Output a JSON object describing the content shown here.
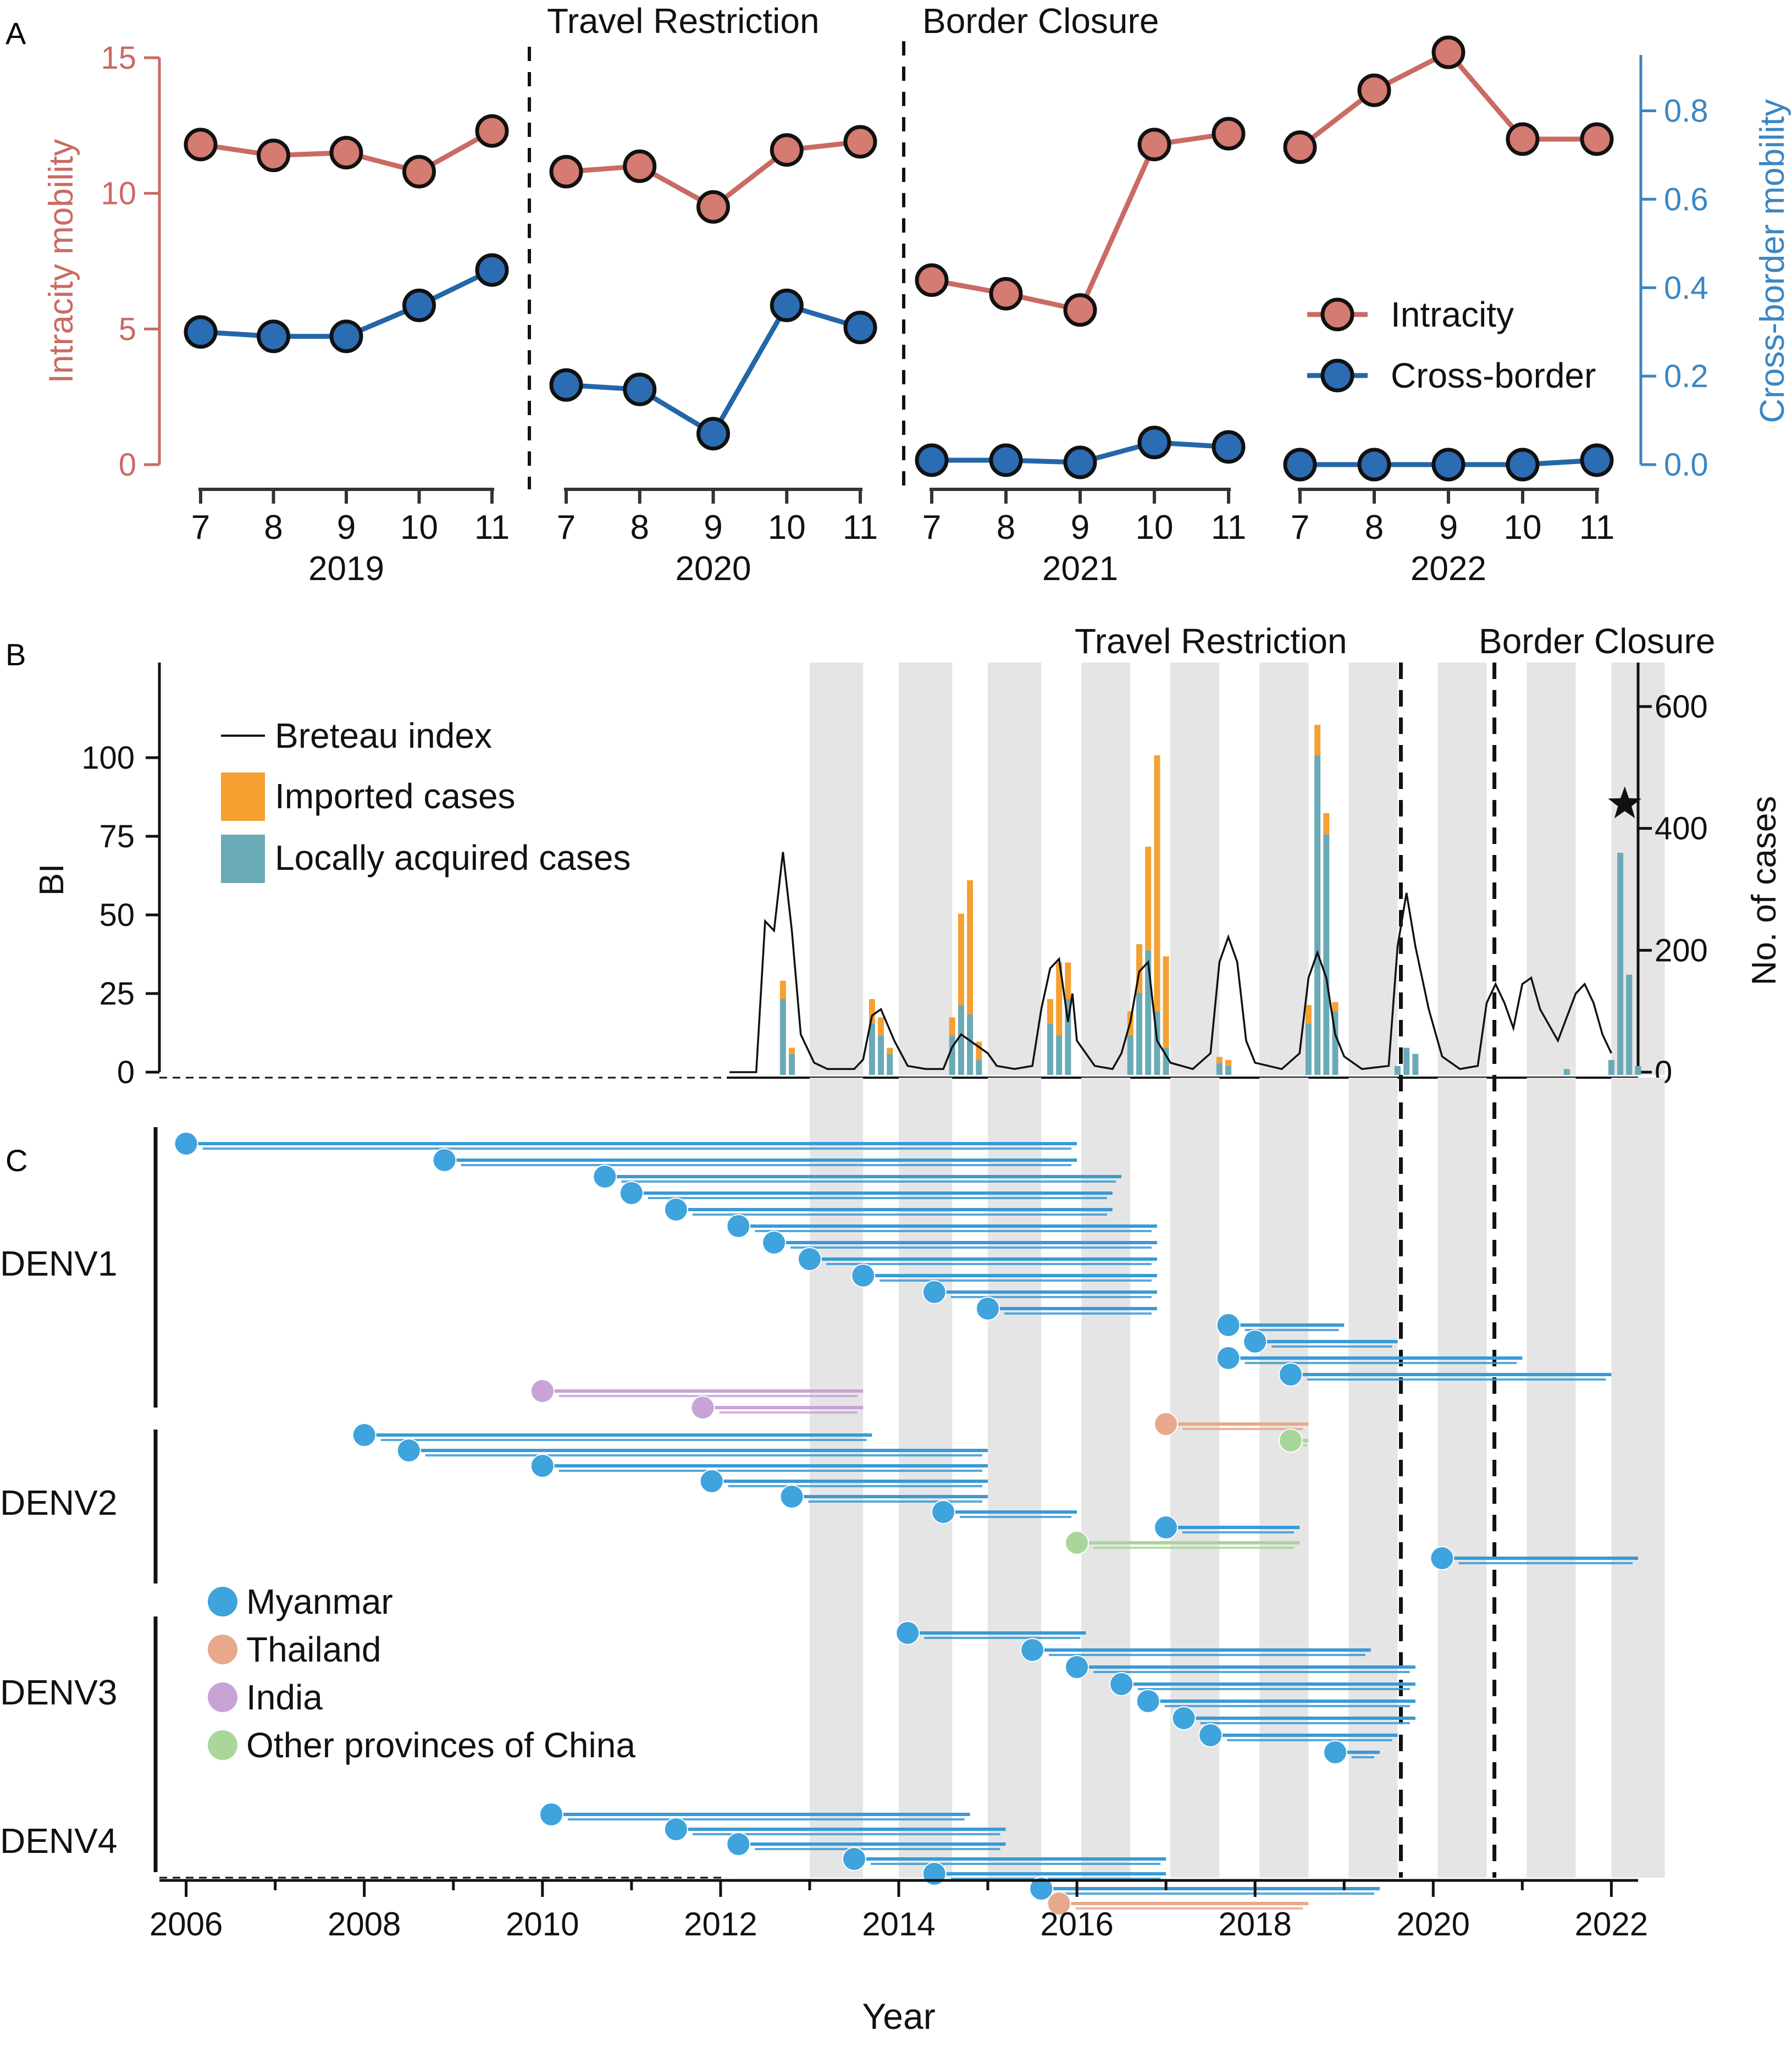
{
  "colors": {
    "intracity": "#c96b64",
    "intracity_fill": "#d47b72",
    "crossborder": "#2466a8",
    "crossborder_fill": "#2b6cb3",
    "crossborder_axis": "#3b86c2",
    "imported": "#f5a030",
    "local": "#6aaab6",
    "shade": "#e5e5e5",
    "myanmar": "#3fa3dd",
    "myanmar_branch": "#3a9ad6",
    "thailand": "#e8a88c",
    "india": "#c8a3d6",
    "china_other": "#a9d69a",
    "black": "#111111"
  },
  "panel_labels": {
    "a": "A",
    "b": "B",
    "c": "C"
  },
  "chart_data": [
    {
      "type": "line",
      "panel": "A",
      "ylabel_left": "Intracity mobility",
      "ylabel_right": "Cross-border mobility",
      "ylim_left": [
        0,
        15
      ],
      "ylim_right": [
        0,
        0.92
      ],
      "yticks_left": [
        "0",
        "5",
        "10",
        "15"
      ],
      "yticks_right": [
        "0.0",
        "0.2",
        "0.4",
        "0.6",
        "0.8"
      ],
      "annotations": [
        "Travel Restriction",
        "Border Closure"
      ],
      "legend": {
        "placement": "right",
        "entries": [
          "Intracity",
          "Cross-border"
        ]
      },
      "x_ticks": [
        "7",
        "8",
        "9",
        "10",
        "11"
      ],
      "groups": [
        {
          "year": "2019",
          "intracity": [
            11.8,
            11.4,
            11.5,
            10.8,
            12.3
          ],
          "crossborder": [
            0.3,
            0.29,
            0.29,
            0.36,
            0.44
          ]
        },
        {
          "year": "2020",
          "intracity": [
            10.8,
            11.0,
            9.5,
            11.6,
            11.9
          ],
          "crossborder": [
            0.18,
            0.17,
            0.07,
            0.36,
            0.31
          ]
        },
        {
          "year": "2021",
          "intracity": [
            6.8,
            6.3,
            5.7,
            11.8,
            12.2
          ],
          "crossborder": [
            0.01,
            0.01,
            0.005,
            0.05,
            0.04
          ]
        },
        {
          "year": "2022",
          "intracity": [
            11.7,
            13.8,
            15.2,
            12.0,
            12.0
          ],
          "crossborder": [
            0.0,
            0.0,
            0.0,
            0.0,
            0.01
          ]
        }
      ]
    },
    {
      "type": "bar",
      "panel": "B",
      "ylabel_left": "BI",
      "ylabel_right": "No. of cases",
      "ylim_left": [
        0,
        125
      ],
      "ylim_right": [
        0,
        640
      ],
      "yticks_left": [
        "0",
        "25",
        "50",
        "75",
        "100"
      ],
      "yticks_right": [
        "0",
        "200",
        "400",
        "600"
      ],
      "annotations": [
        "Travel Restriction",
        "Border Closure"
      ],
      "legend": {
        "placement": "top-left",
        "entries": [
          "Breteau index",
          "Imported cases",
          "Locally acquired cases"
        ]
      },
      "season_shading": [
        [
          2013.0,
          2013.6
        ],
        [
          2014.0,
          2014.6
        ],
        [
          2015.0,
          2015.6
        ],
        [
          2016.05,
          2016.6
        ],
        [
          2017.05,
          2017.6
        ],
        [
          2018.05,
          2018.6
        ],
        [
          2019.05,
          2019.6
        ],
        [
          2020.05,
          2020.6
        ],
        [
          2021.05,
          2021.6
        ],
        [
          2022.0,
          2022.6
        ]
      ],
      "series": [
        {
          "name": "Breteau index",
          "points": [
            [
              2012.1,
              0
            ],
            [
              2012.4,
              0
            ],
            [
              2012.5,
              48
            ],
            [
              2012.6,
              45
            ],
            [
              2012.7,
              70
            ],
            [
              2012.8,
              45
            ],
            [
              2012.9,
              12
            ],
            [
              2013.05,
              3
            ],
            [
              2013.2,
              1
            ],
            [
              2013.5,
              1
            ],
            [
              2013.6,
              4
            ],
            [
              2013.7,
              18
            ],
            [
              2013.8,
              20
            ],
            [
              2013.95,
              10
            ],
            [
              2014.1,
              2
            ],
            [
              2014.3,
              1
            ],
            [
              2014.5,
              1
            ],
            [
              2014.6,
              8
            ],
            [
              2014.7,
              12
            ],
            [
              2014.8,
              10
            ],
            [
              2014.9,
              8
            ],
            [
              2015.0,
              6
            ],
            [
              2015.1,
              2
            ],
            [
              2015.3,
              1
            ],
            [
              2015.5,
              2
            ],
            [
              2015.6,
              20
            ],
            [
              2015.7,
              33
            ],
            [
              2015.8,
              36
            ],
            [
              2015.9,
              16
            ],
            [
              2015.95,
              25
            ],
            [
              2016.0,
              10
            ],
            [
              2016.2,
              2
            ],
            [
              2016.4,
              1
            ],
            [
              2016.5,
              6
            ],
            [
              2016.6,
              16
            ],
            [
              2016.7,
              32
            ],
            [
              2016.8,
              35
            ],
            [
              2016.9,
              10
            ],
            [
              2017.05,
              3
            ],
            [
              2017.3,
              1
            ],
            [
              2017.5,
              6
            ],
            [
              2017.6,
              35
            ],
            [
              2017.7,
              43
            ],
            [
              2017.8,
              35
            ],
            [
              2017.9,
              10
            ],
            [
              2018.0,
              3
            ],
            [
              2018.3,
              1
            ],
            [
              2018.5,
              6
            ],
            [
              2018.6,
              30
            ],
            [
              2018.7,
              38
            ],
            [
              2018.8,
              30
            ],
            [
              2018.9,
              12
            ],
            [
              2019.0,
              5
            ],
            [
              2019.2,
              1
            ],
            [
              2019.5,
              2
            ],
            [
              2019.6,
              40
            ],
            [
              2019.7,
              57
            ],
            [
              2019.8,
              40
            ],
            [
              2019.95,
              20
            ],
            [
              2020.1,
              5
            ],
            [
              2020.3,
              1
            ],
            [
              2020.5,
              2
            ],
            [
              2020.6,
              22
            ],
            [
              2020.7,
              28
            ],
            [
              2020.8,
              22
            ],
            [
              2020.9,
              14
            ],
            [
              2021.0,
              28
            ],
            [
              2021.1,
              30
            ],
            [
              2021.2,
              20
            ],
            [
              2021.4,
              10
            ],
            [
              2021.6,
              25
            ],
            [
              2021.7,
              28
            ],
            [
              2021.8,
              22
            ],
            [
              2021.9,
              12
            ],
            [
              2022.0,
              6
            ]
          ]
        }
      ],
      "bars": [
        {
          "x": 2012.7,
          "imported": 30,
          "local": 120
        },
        {
          "x": 2012.8,
          "imported": 10,
          "local": 30
        },
        {
          "x": 2013.7,
          "imported": 40,
          "local": 80
        },
        {
          "x": 2013.8,
          "imported": 30,
          "local": 60
        },
        {
          "x": 2013.9,
          "imported": 10,
          "local": 30
        },
        {
          "x": 2014.6,
          "imported": 30,
          "local": 60
        },
        {
          "x": 2014.7,
          "imported": 150,
          "local": 110
        },
        {
          "x": 2014.8,
          "imported": 220,
          "local": 95
        },
        {
          "x": 2014.9,
          "imported": 30,
          "local": 20
        },
        {
          "x": 2015.7,
          "imported": 40,
          "local": 80
        },
        {
          "x": 2015.8,
          "imported": 120,
          "local": 60
        },
        {
          "x": 2015.9,
          "imported": 60,
          "local": 120
        },
        {
          "x": 2016.6,
          "imported": 40,
          "local": 60
        },
        {
          "x": 2016.7,
          "imported": 80,
          "local": 130
        },
        {
          "x": 2016.8,
          "imported": 170,
          "local": 200
        },
        {
          "x": 2016.9,
          "imported": 420,
          "local": 100
        },
        {
          "x": 2017.0,
          "imported": 150,
          "local": 40
        },
        {
          "x": 2017.6,
          "imported": 10,
          "local": 15
        },
        {
          "x": 2017.7,
          "imported": 10,
          "local": 10
        },
        {
          "x": 2018.6,
          "imported": 30,
          "local": 80
        },
        {
          "x": 2018.7,
          "imported": 50,
          "local": 520
        },
        {
          "x": 2018.8,
          "imported": 35,
          "local": 390
        },
        {
          "x": 2018.9,
          "imported": 15,
          "local": 100
        },
        {
          "x": 2019.6,
          "imported": 0,
          "local": 10
        },
        {
          "x": 2019.7,
          "imported": 0,
          "local": 40
        },
        {
          "x": 2019.8,
          "imported": 0,
          "local": 30
        },
        {
          "x": 2021.5,
          "imported": 0,
          "local": 5
        },
        {
          "x": 2022.0,
          "imported": 0,
          "local": 20
        },
        {
          "x": 2022.1,
          "imported": 0,
          "local": 360
        },
        {
          "x": 2022.2,
          "imported": 0,
          "local": 160
        },
        {
          "x": 2022.3,
          "imported": 0,
          "local": 10
        }
      ],
      "star_marker": {
        "x": 2022.15,
        "value": 440
      }
    },
    {
      "type": "scatter",
      "panel": "C",
      "xlabel": "Year",
      "xlim": [
        2005.7,
        2022.3
      ],
      "x_ticks": [
        "2006",
        "2008",
        "2010",
        "2012",
        "2014",
        "2016",
        "2018",
        "2020",
        "2022"
      ],
      "y_groups": [
        "DENV1",
        "DENV2",
        "DENV3",
        "DENV4"
      ],
      "legend": {
        "placement": "bottom-left",
        "entries": [
          "Myanmar",
          "Thailand",
          "India",
          "Other provinces of China"
        ]
      },
      "lineages": [
        {
          "serotype": "DENV1",
          "origin": "Myanmar",
          "start": 2006.0,
          "end": 2016.0
        },
        {
          "serotype": "DENV1",
          "origin": "Myanmar",
          "start": 2008.9,
          "end": 2016.0
        },
        {
          "serotype": "DENV1",
          "origin": "Myanmar",
          "start": 2010.7,
          "end": 2016.5
        },
        {
          "serotype": "DENV1",
          "origin": "Myanmar",
          "start": 2011.0,
          "end": 2016.4
        },
        {
          "serotype": "DENV1",
          "origin": "Myanmar",
          "start": 2011.5,
          "end": 2016.4
        },
        {
          "serotype": "DENV1",
          "origin": "Myanmar",
          "start": 2012.2,
          "end": 2016.9
        },
        {
          "serotype": "DENV1",
          "origin": "Myanmar",
          "start": 2012.6,
          "end": 2016.9
        },
        {
          "serotype": "DENV1",
          "origin": "Myanmar",
          "start": 2013.0,
          "end": 2016.9
        },
        {
          "serotype": "DENV1",
          "origin": "Myanmar",
          "start": 2013.6,
          "end": 2016.9
        },
        {
          "serotype": "DENV1",
          "origin": "Myanmar",
          "start": 2014.4,
          "end": 2016.9
        },
        {
          "serotype": "DENV1",
          "origin": "Myanmar",
          "start": 2015.0,
          "end": 2016.9
        },
        {
          "serotype": "DENV1",
          "origin": "Myanmar",
          "start": 2017.7,
          "end": 2019.0
        },
        {
          "serotype": "DENV1",
          "origin": "Myanmar",
          "start": 2018.0,
          "end": 2019.6
        },
        {
          "serotype": "DENV1",
          "origin": "Myanmar",
          "start": 2017.7,
          "end": 2021.0
        },
        {
          "serotype": "DENV1",
          "origin": "Myanmar",
          "start": 2018.4,
          "end": 2022.0
        },
        {
          "serotype": "DENV1",
          "origin": "India",
          "start": 2010.0,
          "end": 2013.6
        },
        {
          "serotype": "DENV1",
          "origin": "India",
          "start": 2011.8,
          "end": 2013.6
        },
        {
          "serotype": "DENV1",
          "origin": "Thailand",
          "start": 2017.0,
          "end": 2018.6
        },
        {
          "serotype": "DENV1",
          "origin": "Other provinces of China",
          "start": 2018.4,
          "end": 2018.6
        },
        {
          "serotype": "DENV2",
          "origin": "Myanmar",
          "start": 2008.0,
          "end": 2013.7
        },
        {
          "serotype": "DENV2",
          "origin": "Myanmar",
          "start": 2008.5,
          "end": 2015.0
        },
        {
          "serotype": "DENV2",
          "origin": "Myanmar",
          "start": 2010.0,
          "end": 2015.0
        },
        {
          "serotype": "DENV2",
          "origin": "Myanmar",
          "start": 2011.9,
          "end": 2015.0
        },
        {
          "serotype": "DENV2",
          "origin": "Myanmar",
          "start": 2012.8,
          "end": 2015.0
        },
        {
          "serotype": "DENV2",
          "origin": "Myanmar",
          "start": 2014.5,
          "end": 2016.0
        },
        {
          "serotype": "DENV2",
          "origin": "Myanmar",
          "start": 2017.0,
          "end": 2018.5
        },
        {
          "serotype": "DENV2",
          "origin": "Other provinces of China",
          "start": 2016.0,
          "end": 2018.5
        },
        {
          "serotype": "DENV2",
          "origin": "Myanmar",
          "start": 2020.1,
          "end": 2022.3
        },
        {
          "serotype": "DENV3",
          "origin": "Myanmar",
          "start": 2014.1,
          "end": 2016.1
        },
        {
          "serotype": "DENV3",
          "origin": "Myanmar",
          "start": 2015.5,
          "end": 2019.3
        },
        {
          "serotype": "DENV3",
          "origin": "Myanmar",
          "start": 2016.0,
          "end": 2019.8
        },
        {
          "serotype": "DENV3",
          "origin": "Myanmar",
          "start": 2016.5,
          "end": 2019.8
        },
        {
          "serotype": "DENV3",
          "origin": "Myanmar",
          "start": 2016.8,
          "end": 2019.8
        },
        {
          "serotype": "DENV3",
          "origin": "Myanmar",
          "start": 2017.2,
          "end": 2019.8
        },
        {
          "serotype": "DENV3",
          "origin": "Myanmar",
          "start": 2017.5,
          "end": 2019.6
        },
        {
          "serotype": "DENV3",
          "origin": "Myanmar",
          "start": 2018.9,
          "end": 2019.4
        },
        {
          "serotype": "DENV4",
          "origin": "Myanmar",
          "start": 2010.1,
          "end": 2014.8
        },
        {
          "serotype": "DENV4",
          "origin": "Myanmar",
          "start": 2011.5,
          "end": 2015.2
        },
        {
          "serotype": "DENV4",
          "origin": "Myanmar",
          "start": 2012.2,
          "end": 2015.2
        },
        {
          "serotype": "DENV4",
          "origin": "Myanmar",
          "start": 2013.5,
          "end": 2017.0
        },
        {
          "serotype": "DENV4",
          "origin": "Myanmar",
          "start": 2014.4,
          "end": 2017.0
        },
        {
          "serotype": "DENV4",
          "origin": "Myanmar",
          "start": 2015.6,
          "end": 2019.4
        },
        {
          "serotype": "DENV4",
          "origin": "Thailand",
          "start": 2015.8,
          "end": 2018.6
        }
      ]
    }
  ]
}
